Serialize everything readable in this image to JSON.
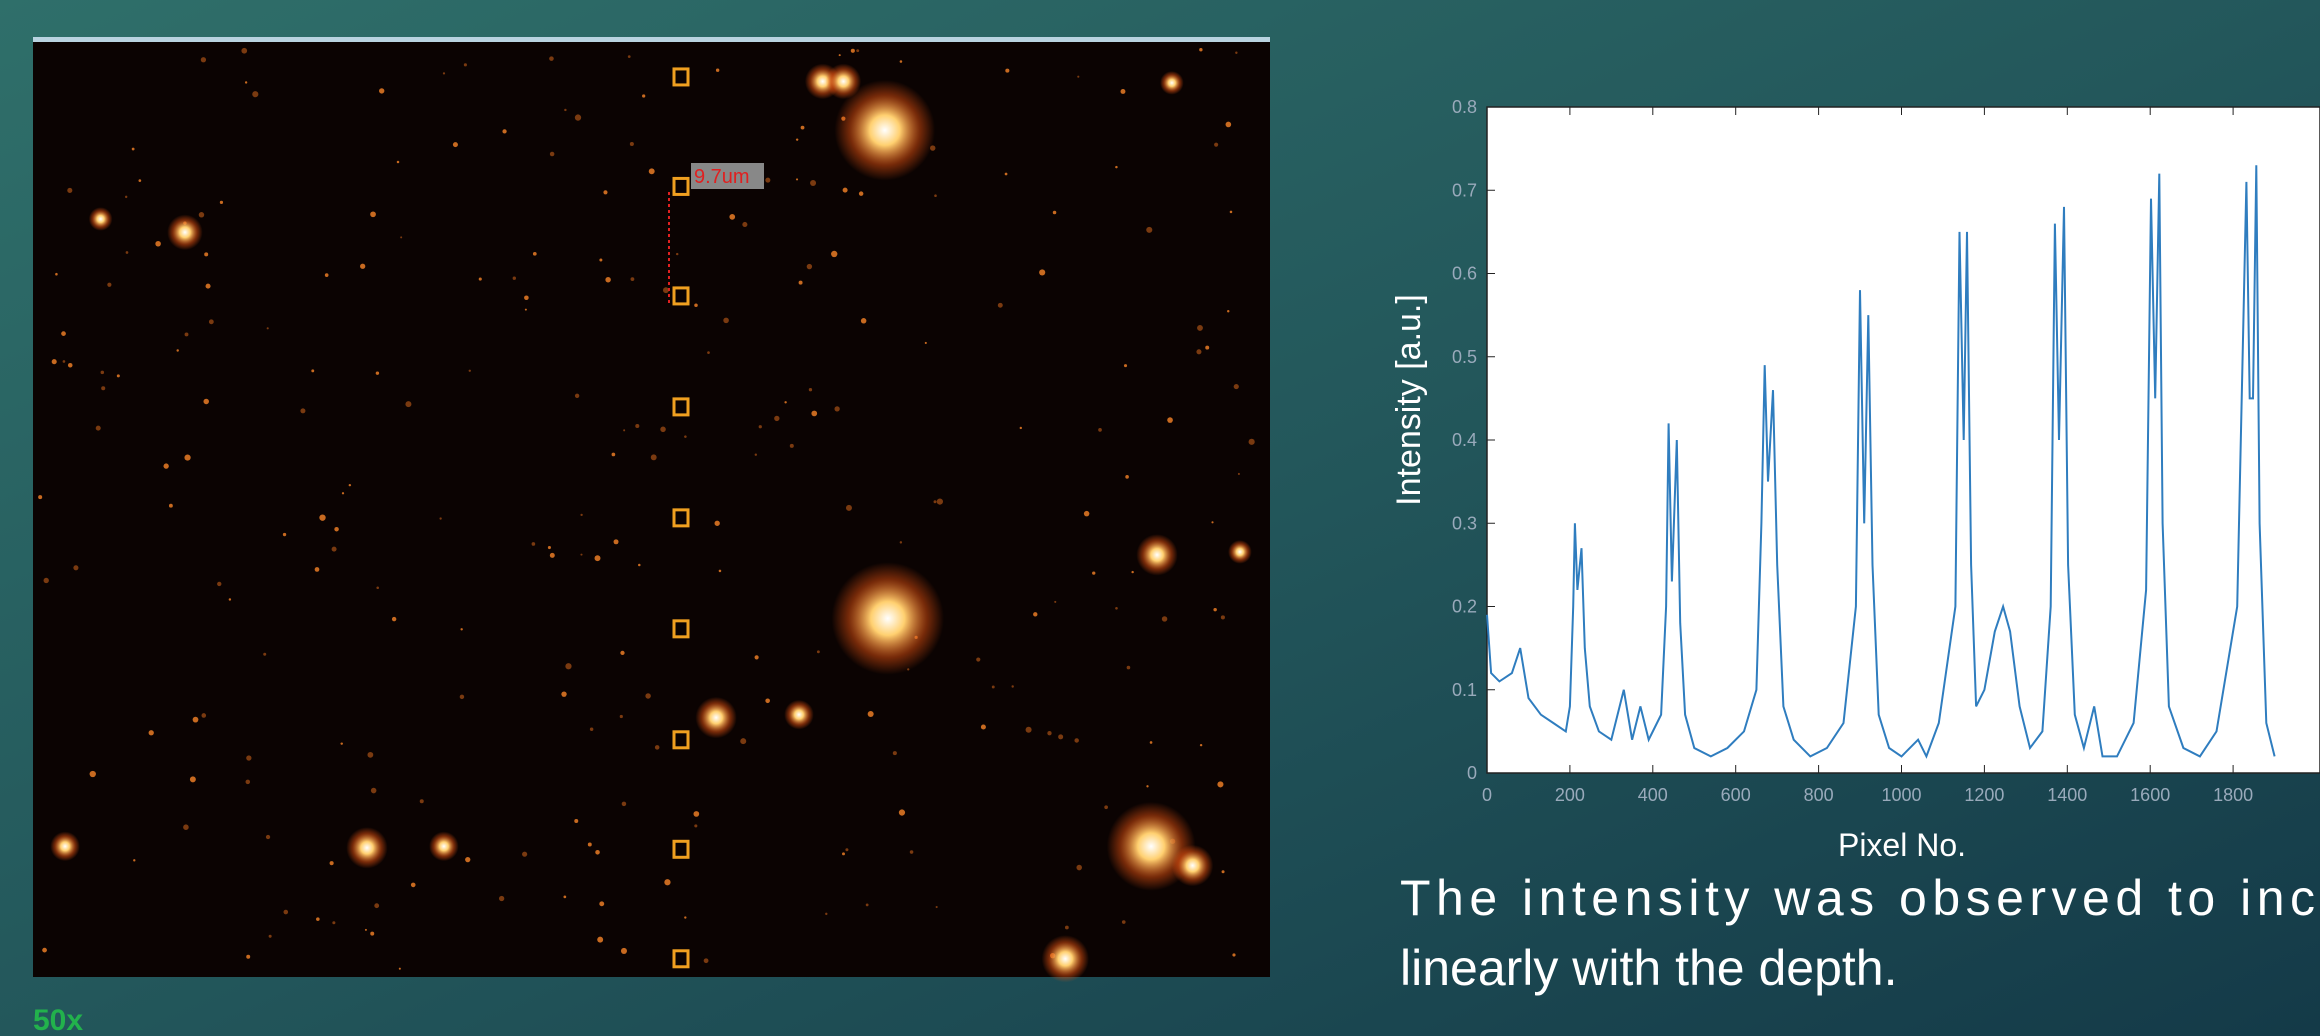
{
  "image": {
    "scale_label": "50x",
    "measurement_label": "9.7um"
  },
  "chart_data": {
    "type": "line",
    "xlabel": "Pixel No.",
    "ylabel": "Intensity [a.u.]",
    "color": "#2f7dbf",
    "x": [
      0,
      10,
      30,
      60,
      80,
      100,
      130,
      160,
      190,
      200,
      208,
      212,
      218,
      228,
      236,
      248,
      270,
      300,
      330,
      350,
      370,
      390,
      420,
      432,
      438,
      446,
      458,
      466,
      478,
      500,
      540,
      580,
      620,
      650,
      662,
      670,
      678,
      690,
      700,
      715,
      740,
      780,
      820,
      860,
      890,
      900,
      910,
      920,
      930,
      945,
      970,
      1000,
      1040,
      1060,
      1090,
      1130,
      1140,
      1150,
      1158,
      1168,
      1180,
      1200,
      1225,
      1245,
      1262,
      1285,
      1310,
      1340,
      1360,
      1370,
      1380,
      1392,
      1402,
      1418,
      1440,
      1465,
      1485,
      1520,
      1560,
      1590,
      1602,
      1612,
      1622,
      1630,
      1645,
      1680,
      1720,
      1760,
      1810,
      1832,
      1840,
      1848,
      1856,
      1864,
      1880,
      1900
    ],
    "values": [
      0.19,
      0.12,
      0.11,
      0.12,
      0.15,
      0.09,
      0.07,
      0.06,
      0.05,
      0.08,
      0.2,
      0.3,
      0.22,
      0.27,
      0.15,
      0.08,
      0.05,
      0.04,
      0.1,
      0.04,
      0.08,
      0.04,
      0.07,
      0.2,
      0.42,
      0.23,
      0.4,
      0.18,
      0.07,
      0.03,
      0.02,
      0.03,
      0.05,
      0.1,
      0.3,
      0.49,
      0.35,
      0.46,
      0.25,
      0.08,
      0.04,
      0.02,
      0.03,
      0.06,
      0.2,
      0.58,
      0.3,
      0.55,
      0.25,
      0.07,
      0.03,
      0.02,
      0.04,
      0.02,
      0.06,
      0.2,
      0.65,
      0.4,
      0.65,
      0.25,
      0.08,
      0.1,
      0.17,
      0.2,
      0.17,
      0.08,
      0.03,
      0.05,
      0.2,
      0.66,
      0.4,
      0.68,
      0.25,
      0.07,
      0.03,
      0.08,
      0.02,
      0.02,
      0.06,
      0.22,
      0.69,
      0.45,
      0.72,
      0.3,
      0.08,
      0.03,
      0.02,
      0.05,
      0.2,
      0.71,
      0.45,
      0.45,
      0.73,
      0.3,
      0.06,
      0.02
    ],
    "xlim": [
      0,
      2000
    ],
    "ylim": [
      0,
      0.8
    ],
    "xticks": [
      0,
      200,
      400,
      600,
      800,
      1000,
      1200,
      1400,
      1600,
      1800
    ],
    "yticks": [
      0,
      0.1,
      0.2,
      0.3,
      0.4,
      0.5,
      0.6,
      0.7,
      0.8
    ]
  },
  "caption": {
    "lines": [
      "The intensity was observed to inc",
      "linearly with the depth."
    ]
  }
}
